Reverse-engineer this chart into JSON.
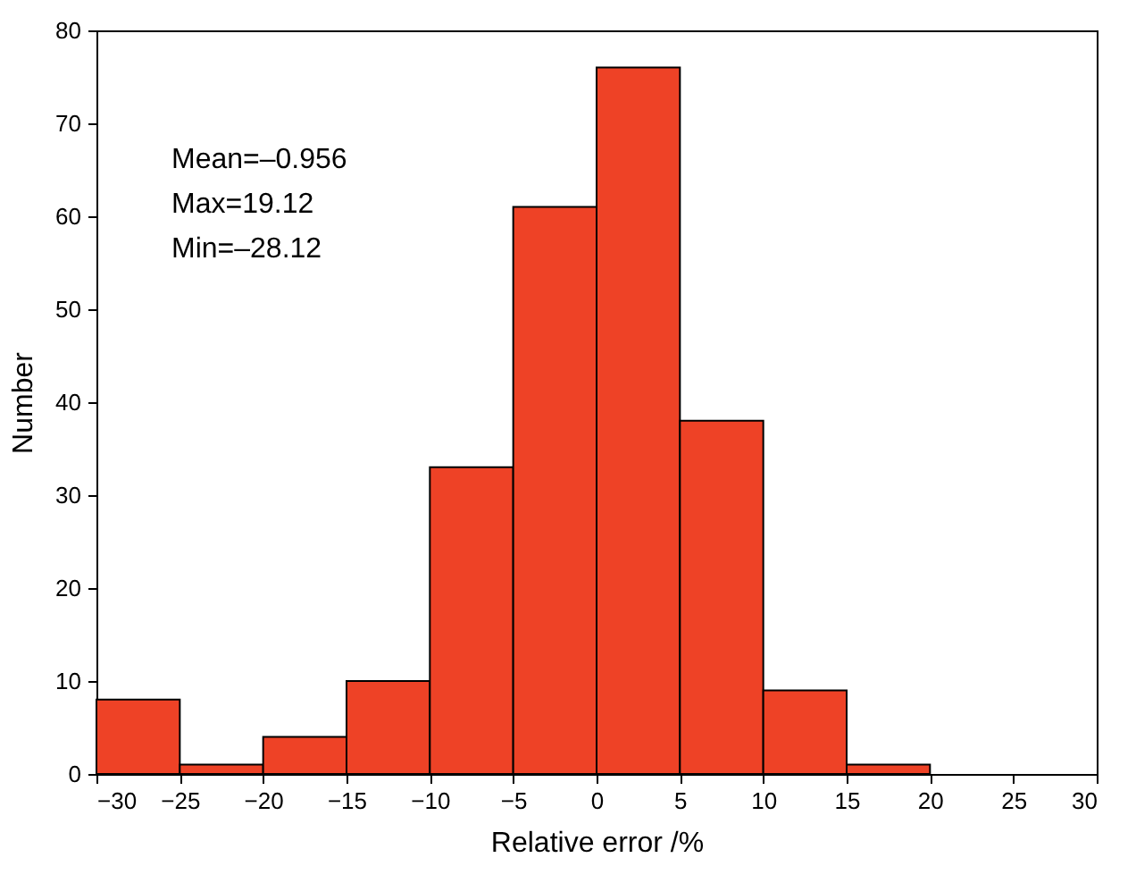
{
  "chart_data": {
    "type": "histogram",
    "xlabel": "Relative error /%",
    "ylabel": "Number",
    "bins": [
      -30,
      -25,
      -20,
      -15,
      -10,
      -5,
      0,
      5,
      10,
      15,
      20
    ],
    "values": [
      8,
      1,
      4,
      10,
      33,
      61,
      76,
      38,
      9,
      1
    ],
    "color": "#ee4226",
    "xlim": [
      -30,
      30
    ],
    "xticks": [
      -30,
      -25,
      -20,
      -15,
      -10,
      -5,
      0,
      5,
      10,
      15,
      20,
      25,
      30
    ],
    "ylim": [
      0,
      80
    ],
    "yticks": [
      0,
      10,
      20,
      30,
      40,
      50,
      60,
      70,
      80
    ],
    "annotations": [
      "Mean=–0.956",
      "Max=19.12",
      "Min=–28.12"
    ],
    "grid": false
  }
}
